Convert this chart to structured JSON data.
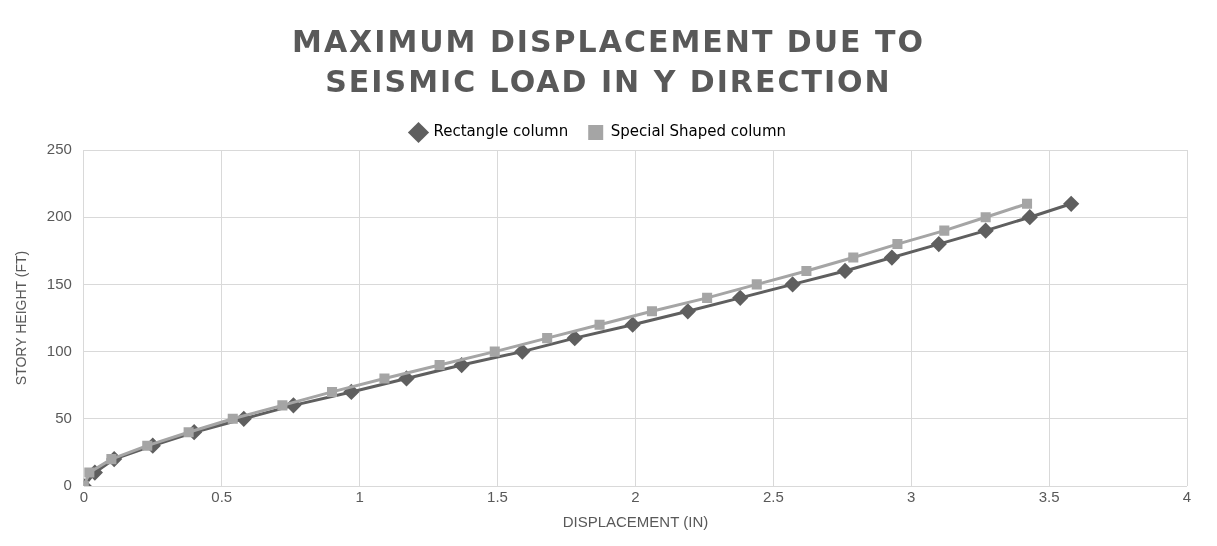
{
  "chart_data": {
    "type": "line",
    "title": "MAXIMUM DISPLACEMENT DUE TO SEISMIC LOAD IN Y DIRECTION",
    "xlabel": "DISPLACEMENT (IN)",
    "ylabel": "STORY HEIGHT (FT)",
    "series": [
      {
        "name": "Rectangle column",
        "color": "#5f5f5f",
        "marker": "diamond",
        "x": [
          0,
          0.04,
          0.11,
          0.25,
          0.4,
          0.58,
          0.76,
          0.97,
          1.17,
          1.37,
          1.59,
          1.78,
          1.99,
          2.19,
          2.38,
          2.57,
          2.76,
          2.93,
          3.1,
          3.27,
          3.43,
          3.58
        ],
        "values": [
          0,
          10,
          20,
          30,
          40,
          50,
          60,
          70,
          80,
          90,
          100,
          110,
          120,
          130,
          140,
          150,
          160,
          170,
          180,
          190,
          200,
          210
        ]
      },
      {
        "name": "Special Shaped column",
        "color": "#a5a5a5",
        "marker": "square",
        "x": [
          0,
          0.02,
          0.1,
          0.23,
          0.38,
          0.54,
          0.72,
          0.9,
          1.09,
          1.29,
          1.49,
          1.68,
          1.87,
          2.06,
          2.26,
          2.44,
          2.62,
          2.79,
          2.95,
          3.12,
          3.27,
          3.42
        ],
        "values": [
          0,
          10,
          20,
          30,
          40,
          50,
          60,
          70,
          80,
          90,
          100,
          110,
          120,
          130,
          140,
          150,
          160,
          170,
          180,
          190,
          200,
          210
        ]
      }
    ],
    "xlim": [
      0,
      4
    ],
    "xticks": [
      0,
      0.5,
      1,
      1.5,
      2,
      2.5,
      3,
      3.5,
      4
    ],
    "ylim": [
      0,
      250
    ],
    "yticks": [
      0,
      50,
      100,
      150,
      200,
      250
    ],
    "grid": true,
    "legend": "top"
  }
}
